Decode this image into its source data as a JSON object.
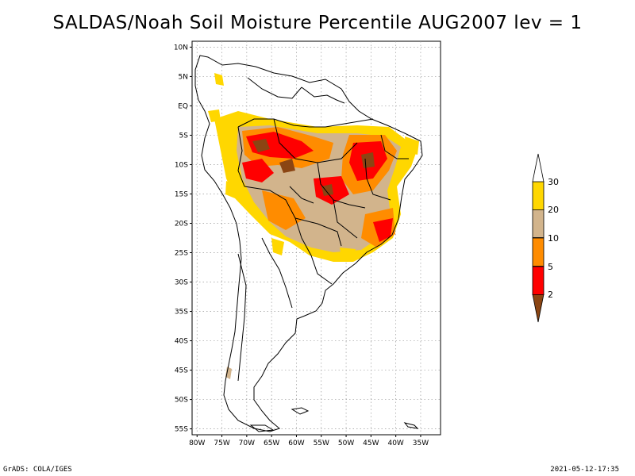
{
  "title": "SALDAS/Noah Soil Moisture Percentile AUG2007 lev = 1",
  "footer": {
    "left": "GrADS: COLA/IGES",
    "right": "2021-05-12-17:35"
  },
  "map": {
    "lat_ticks": [
      "10N",
      "5N",
      "EQ",
      "5S",
      "10S",
      "15S",
      "20S",
      "25S",
      "30S",
      "35S",
      "40S",
      "45S",
      "50S",
      "55S"
    ],
    "lon_ticks": [
      "80W",
      "75W",
      "70W",
      "65W",
      "60W",
      "55W",
      "50W",
      "45W",
      "40W",
      "35W"
    ],
    "lat_range": [
      -56,
      11
    ],
    "lon_range": [
      -81,
      -31
    ]
  },
  "colorbar": {
    "labels": [
      "2",
      "5",
      "10",
      "20",
      "30"
    ],
    "colors": [
      "#8b4513",
      "#ff0000",
      "#ff8c00",
      "#d2b48c",
      "#ffd700"
    ]
  },
  "icons": [
    "colorbar-lower-arrow",
    "colorbar-upper-arrow"
  ]
}
